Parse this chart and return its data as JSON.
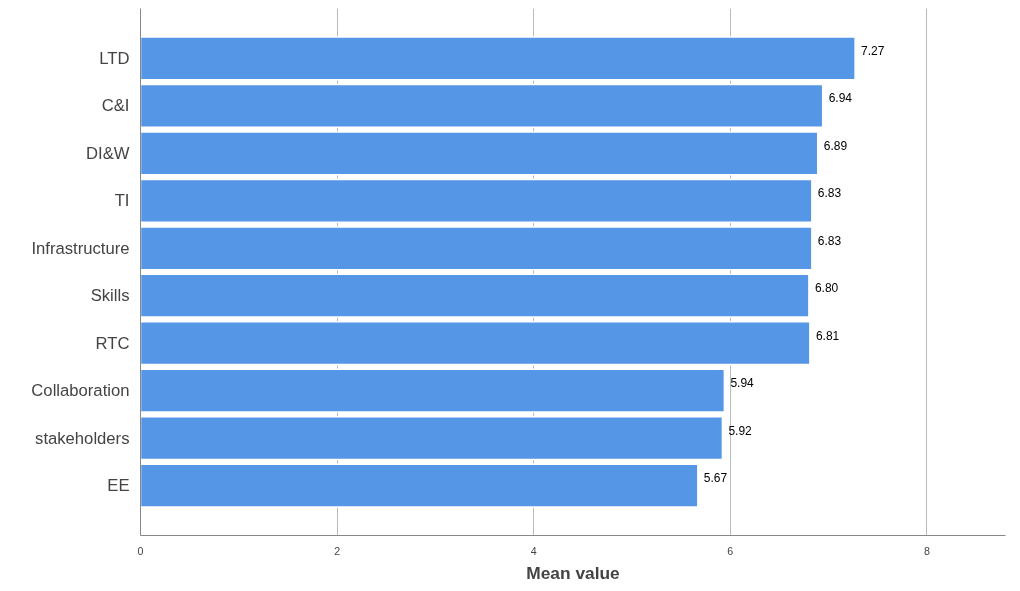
{
  "chart_data": {
    "type": "bar",
    "orientation": "horizontal",
    "xlabel": "Mean value",
    "categories": [
      "LTD",
      "C&I",
      "DI&W",
      "TI",
      "Infrastructure",
      "Skills",
      "RTC",
      "Collaboration",
      "stakeholders",
      "EE"
    ],
    "values": [
      7.27,
      6.94,
      6.89,
      6.83,
      6.83,
      6.8,
      6.81,
      5.94,
      5.92,
      5.67
    ],
    "value_labels": [
      "7.27",
      "6.94",
      "6.89",
      "6.83",
      "6.83",
      "6.80",
      "6.81",
      "5.94",
      "5.92",
      "5.67"
    ],
    "color": "#5596e6",
    "xlim": [
      0,
      8.8
    ],
    "xticks": [
      0,
      2,
      4,
      6,
      8
    ],
    "grid": "x"
  }
}
